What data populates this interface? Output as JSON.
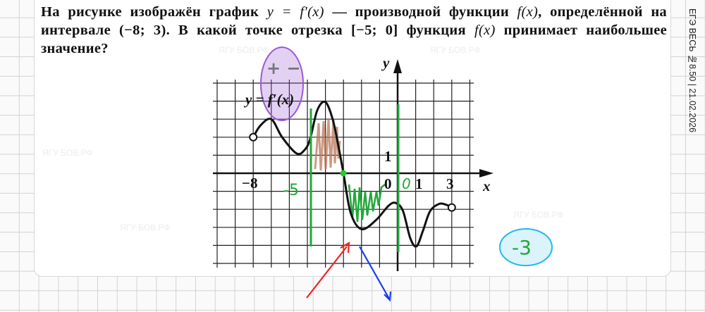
{
  "problem": {
    "text_before": "На рисунке изображён график ",
    "formula_y": "y = f′(x)",
    "text_mid": " — производной функции ",
    "formula_f": "f(x)",
    "text_mid2": ", определённой на интервале (−8; 3). В какой точке отрезка [−5; 0] функция ",
    "formula_f2": "f(x)",
    "text_end": " принимает наибольшее значение?"
  },
  "side_caption": "ЕГЭ ВЕСЬ №8.50 | 21.02.2026",
  "watermark": "ЯГУ БОВ.РФ",
  "graph": {
    "curve_label": "y = f′(x)",
    "x_axis_label": "x",
    "y_axis_label": "y",
    "tick_labels": {
      "x_minus8": "−8",
      "x_0": "0",
      "x_1": "1",
      "x_3": "3",
      "y_1": "1"
    },
    "domain": [
      -8,
      3
    ],
    "curve_points": [
      [
        -8,
        2
      ],
      [
        -7.6,
        2.65
      ],
      [
        -7,
        3
      ],
      [
        -6.4,
        2
      ],
      [
        -5.6,
        1.1
      ],
      [
        -5.15,
        1.3
      ],
      [
        -4.85,
        1.9
      ],
      [
        -4.45,
        3.5
      ],
      [
        -4.0,
        3.95
      ],
      [
        -3.6,
        3.0
      ],
      [
        -3.3,
        1.6
      ],
      [
        -3,
        0
      ],
      [
        -2.6,
        -2.2
      ],
      [
        -2,
        -3.1
      ],
      [
        -1.2,
        -2.6
      ],
      [
        -0.5,
        -1.8
      ],
      [
        -0.1,
        -1.65
      ],
      [
        0.3,
        -2.1
      ],
      [
        0.7,
        -3.6
      ],
      [
        1.05,
        -4.05
      ],
      [
        1.4,
        -3.2
      ],
      [
        1.8,
        -2.1
      ],
      [
        2.3,
        -1.7
      ],
      [
        2.7,
        -1.75
      ],
      [
        3,
        -1.9
      ]
    ],
    "endpoints_open": true,
    "zero_point": -3
  },
  "annotations": {
    "sign_note": "+ −",
    "left_bound": "-5",
    "right_bound": "0",
    "answer": "-3",
    "colors": {
      "green": "#22a83a",
      "purple": "#9b59d6",
      "brown": "#b9785a",
      "red": "#ee2222",
      "blue": "#1a3cf0",
      "cyan": "#22b8ee"
    }
  }
}
